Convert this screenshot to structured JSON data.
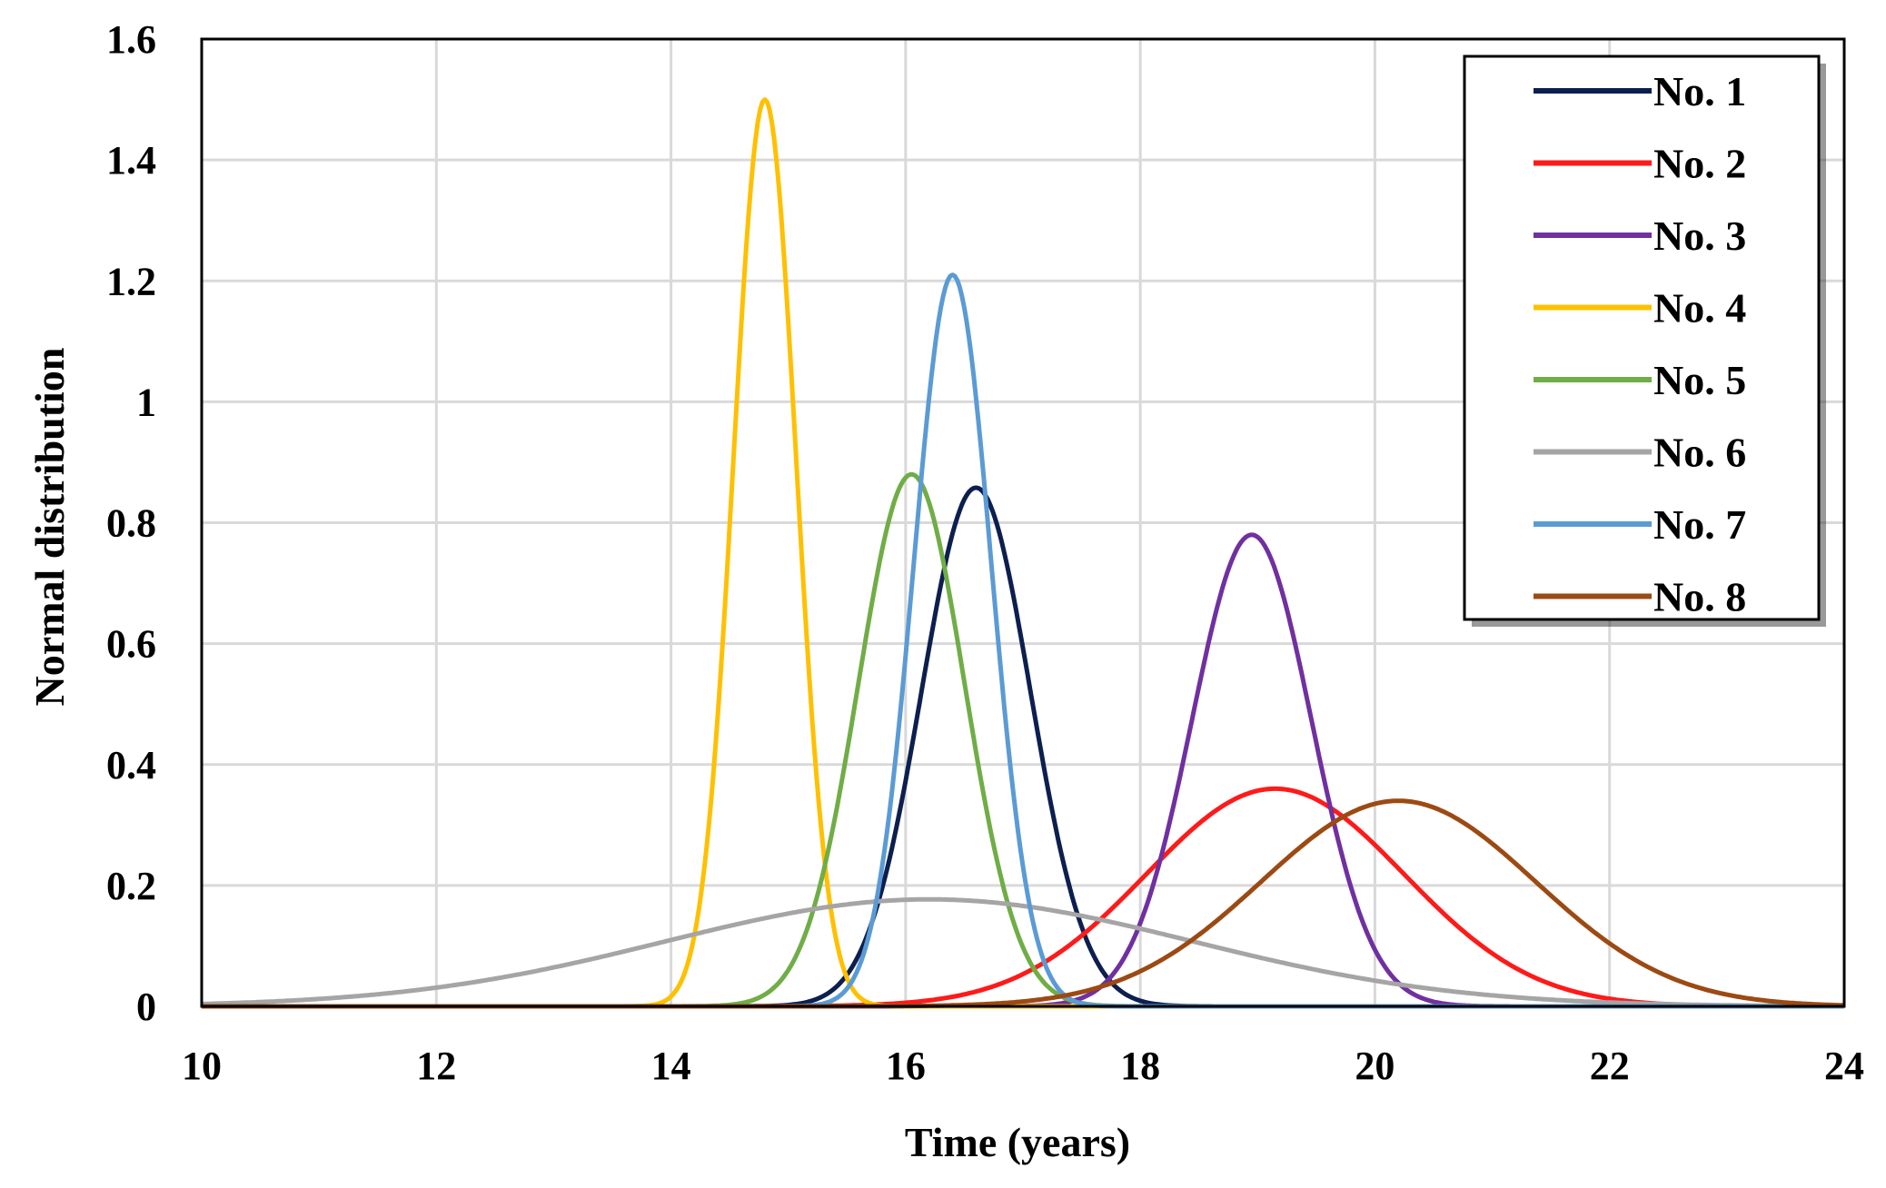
{
  "chart_data": {
    "type": "line",
    "title": "",
    "xlabel": "Time (years)",
    "ylabel": "Normal distribution",
    "xlim": [
      10,
      24
    ],
    "ylim": [
      0,
      1.6
    ],
    "x_ticks": [
      "10",
      "12",
      "14",
      "16",
      "18",
      "20",
      "22",
      "24"
    ],
    "y_ticks": [
      "0",
      "0.2",
      "0.4",
      "0.6",
      "0.8",
      "1",
      "1.2",
      "1.4",
      "1.6"
    ],
    "grid": true,
    "legend_position": "top-right",
    "series": [
      {
        "name": "No. 1",
        "color": "#0d1f4f",
        "distribution": "normal",
        "mean": 16.6,
        "sd": 0.465,
        "peak": 0.858
      },
      {
        "name": "No. 2",
        "color": "#ff1a1a",
        "distribution": "normal",
        "mean": 19.15,
        "sd": 1.1,
        "peak": 0.36
      },
      {
        "name": "No. 3",
        "color": "#7030a0",
        "distribution": "normal",
        "mean": 18.95,
        "sd": 0.51,
        "peak": 0.78
      },
      {
        "name": "No. 4",
        "color": "#ffc000",
        "distribution": "normal",
        "mean": 14.8,
        "sd": 0.266,
        "peak": 1.5
      },
      {
        "name": "No. 5",
        "color": "#70ad47",
        "distribution": "normal",
        "mean": 16.05,
        "sd": 0.453,
        "peak": 0.88
      },
      {
        "name": "No. 6",
        "color": "#a5a5a5",
        "distribution": "normal",
        "mean": 16.2,
        "sd": 2.25,
        "peak": 0.177
      },
      {
        "name": "No. 7",
        "color": "#5b9bd5",
        "distribution": "normal",
        "mean": 16.4,
        "sd": 0.33,
        "peak": 1.21
      },
      {
        "name": "No. 8",
        "color": "#9c4a13",
        "distribution": "normal",
        "mean": 20.2,
        "sd": 1.17,
        "peak": 0.34
      }
    ]
  }
}
